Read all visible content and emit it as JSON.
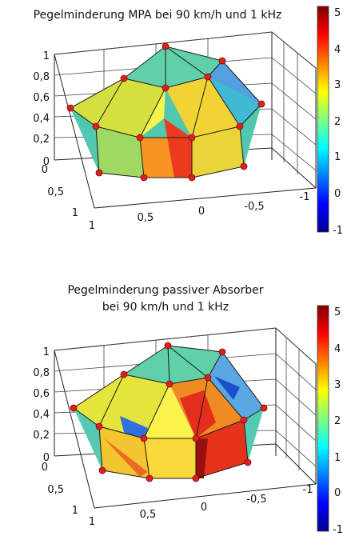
{
  "chart_data": [
    {
      "type": "surface-3d",
      "title_lines": [
        "Pegelminderung MPA bei 90 km/h und 1 kHz"
      ],
      "xlabel": "",
      "ylabel": "",
      "zlabel": "",
      "x_ticks": [
        "1",
        "0,5",
        "0",
        "-0,5",
        "-1"
      ],
      "y_ticks": [
        "1",
        "0,5",
        "0"
      ],
      "z_ticks": [
        "0",
        "0,2",
        "0,4",
        "0,6",
        "0,8",
        "1"
      ],
      "colorbar": {
        "min": -1,
        "max": 5,
        "ticks": [
          "5",
          "4",
          "3",
          "2",
          "1",
          "0",
          "-1"
        ],
        "colormap": "jet"
      },
      "grid": true,
      "nodes": [
        {
          "x": 0.0,
          "y": 0.0,
          "z": 1.0,
          "value": 2.0
        },
        {
          "x": 0.5,
          "y": 0.0,
          "z": 0.85,
          "value": 2.6
        },
        {
          "x": 0.35,
          "y": 0.35,
          "z": 0.85,
          "value": 2.4
        },
        {
          "x": 0.0,
          "y": 0.5,
          "z": 0.85,
          "value": 2.8
        },
        {
          "x": -0.35,
          "y": 0.35,
          "z": 0.85,
          "value": 2.2
        },
        {
          "x": -0.5,
          "y": 0.0,
          "z": 0.85,
          "value": 1.8
        },
        {
          "x": 1.0,
          "y": 0.0,
          "z": 0.5,
          "value": 1.6
        },
        {
          "x": 0.7,
          "y": 0.7,
          "z": 0.5,
          "value": 2.6
        },
        {
          "x": 0.0,
          "y": 1.0,
          "z": 0.5,
          "value": 4.2
        },
        {
          "x": -0.7,
          "y": 0.7,
          "z": 0.5,
          "value": 3.4
        },
        {
          "x": -1.0,
          "y": 0.0,
          "z": 0.5,
          "value": 1.4
        }
      ]
    },
    {
      "type": "surface-3d",
      "title_lines": [
        "Pegelminderung passiver Absorber",
        "bei 90 km/h und 1 kHz"
      ],
      "xlabel": "",
      "ylabel": "",
      "zlabel": "",
      "x_ticks": [
        "1",
        "0,5",
        "0",
        "-0,5",
        "-1"
      ],
      "y_ticks": [
        "1",
        "0,5",
        "0"
      ],
      "z_ticks": [
        "0",
        "0,2",
        "0,4",
        "0,6",
        "0,8",
        "1"
      ],
      "colorbar": {
        "min": -1,
        "max": 5,
        "ticks": [
          "5",
          "4",
          "3",
          "2",
          "1",
          "0",
          "-1"
        ],
        "colormap": "jet"
      },
      "grid": true,
      "nodes": [
        {
          "x": 0.0,
          "y": 0.0,
          "z": 1.0,
          "value": 2.0
        },
        {
          "x": 0.5,
          "y": 0.0,
          "z": 0.85,
          "value": 2.4
        },
        {
          "x": 0.35,
          "y": 0.35,
          "z": 0.85,
          "value": 3.0
        },
        {
          "x": 0.0,
          "y": 0.5,
          "z": 0.85,
          "value": 3.4
        },
        {
          "x": -0.35,
          "y": 0.35,
          "z": 0.85,
          "value": 1.2
        },
        {
          "x": -0.5,
          "y": 0.0,
          "z": 0.85,
          "value": 1.6
        },
        {
          "x": 1.0,
          "y": 0.0,
          "z": 0.5,
          "value": 2.2
        },
        {
          "x": 0.7,
          "y": 0.7,
          "z": 0.5,
          "value": 0.6
        },
        {
          "x": 0.0,
          "y": 1.0,
          "z": 0.5,
          "value": 4.4
        },
        {
          "x": -0.7,
          "y": 0.7,
          "z": 0.5,
          "value": 3.6
        },
        {
          "x": -1.0,
          "y": 0.0,
          "z": 0.5,
          "value": 2.6
        }
      ]
    }
  ]
}
